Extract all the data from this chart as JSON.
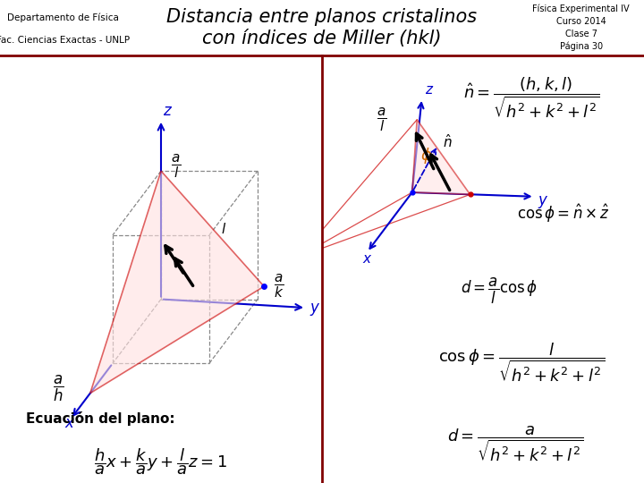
{
  "title": "Distancia entre planos cristalinos\ncon índices de Miller (hkl)",
  "top_left_line1": "Departamento de Física",
  "top_left_line2": "Fac. Ciencias Exactas - UNLP",
  "top_right_line1": "Física Experimental IV",
  "top_right_line2": "Curso 2014",
  "top_right_line3": "Clase 7",
  "top_right_line4": "Página 30",
  "header_bg_left": "#c8e6c8",
  "header_bg_center": "#ffffcc",
  "header_bg_right": "#c8e6c8",
  "body_bg": "#ffffff",
  "divider_color": "#800000",
  "eq_label": "Ecuación del plano:",
  "cube_color": "#888888",
  "axis_color": "#0000cc",
  "plane_color": "#cc0000",
  "normal_color": "#000000",
  "phi_color": "#cc6600"
}
